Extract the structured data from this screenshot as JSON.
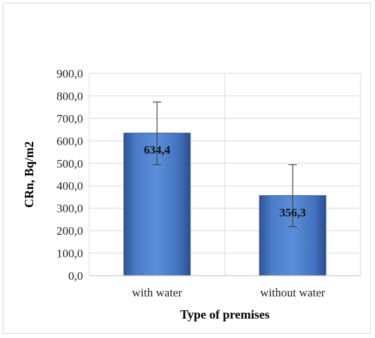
{
  "chart_data": {
    "type": "bar",
    "categories": [
      "with water",
      "without water"
    ],
    "values": [
      634.4,
      356.3
    ],
    "value_labels": [
      "634,4",
      "356,3"
    ],
    "error_upper": [
      773,
      494
    ],
    "error_lower": [
      494,
      218
    ],
    "xlabel": "Type of premises",
    "ylabel": "CRn, Bq/m2",
    "ylim": [
      0,
      900
    ],
    "yticks": [
      0,
      100,
      200,
      300,
      400,
      500,
      600,
      700,
      800,
      900
    ],
    "ytick_labels": [
      "0,0",
      "100,0",
      "200,0",
      "300,0",
      "400,0",
      "500,0",
      "600,0",
      "700,0",
      "800,0",
      "900,0"
    ],
    "grid": true,
    "bar_color": "#4472c4"
  }
}
